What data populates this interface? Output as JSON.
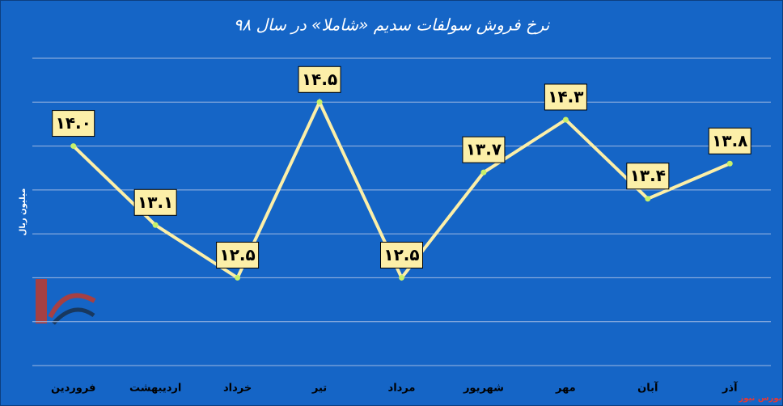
{
  "chart_data": {
    "type": "line",
    "title": "نرخ فروش سولفات سدیم «شاملا» در سال ۹۸",
    "y_label": "میلیون ریال",
    "watermark": "بورس نیوز",
    "categories": [
      "فروردین",
      "اردیبهشت",
      "خرداد",
      "تیر",
      "مرداد",
      "شهریور",
      "مهر",
      "آبان",
      "آذر"
    ],
    "values": [
      14.0,
      13.1,
      12.5,
      14.5,
      12.5,
      13.7,
      14.3,
      13.4,
      13.8
    ],
    "value_labels": [
      "۱۴.۰",
      "۱۳.۱",
      "۱۲.۵",
      "۱۴.۵",
      "۱۲.۵",
      "۱۳.۷",
      "۱۴.۳",
      "۱۳.۴",
      "۱۳.۸"
    ],
    "color": "#fcefa8",
    "marker_color": "#c8f06a",
    "ylim": [
      11.5,
      15
    ],
    "yticks": [
      11.5,
      12,
      12.5,
      13,
      13.5,
      14,
      14.5,
      15
    ],
    "grid": true
  }
}
